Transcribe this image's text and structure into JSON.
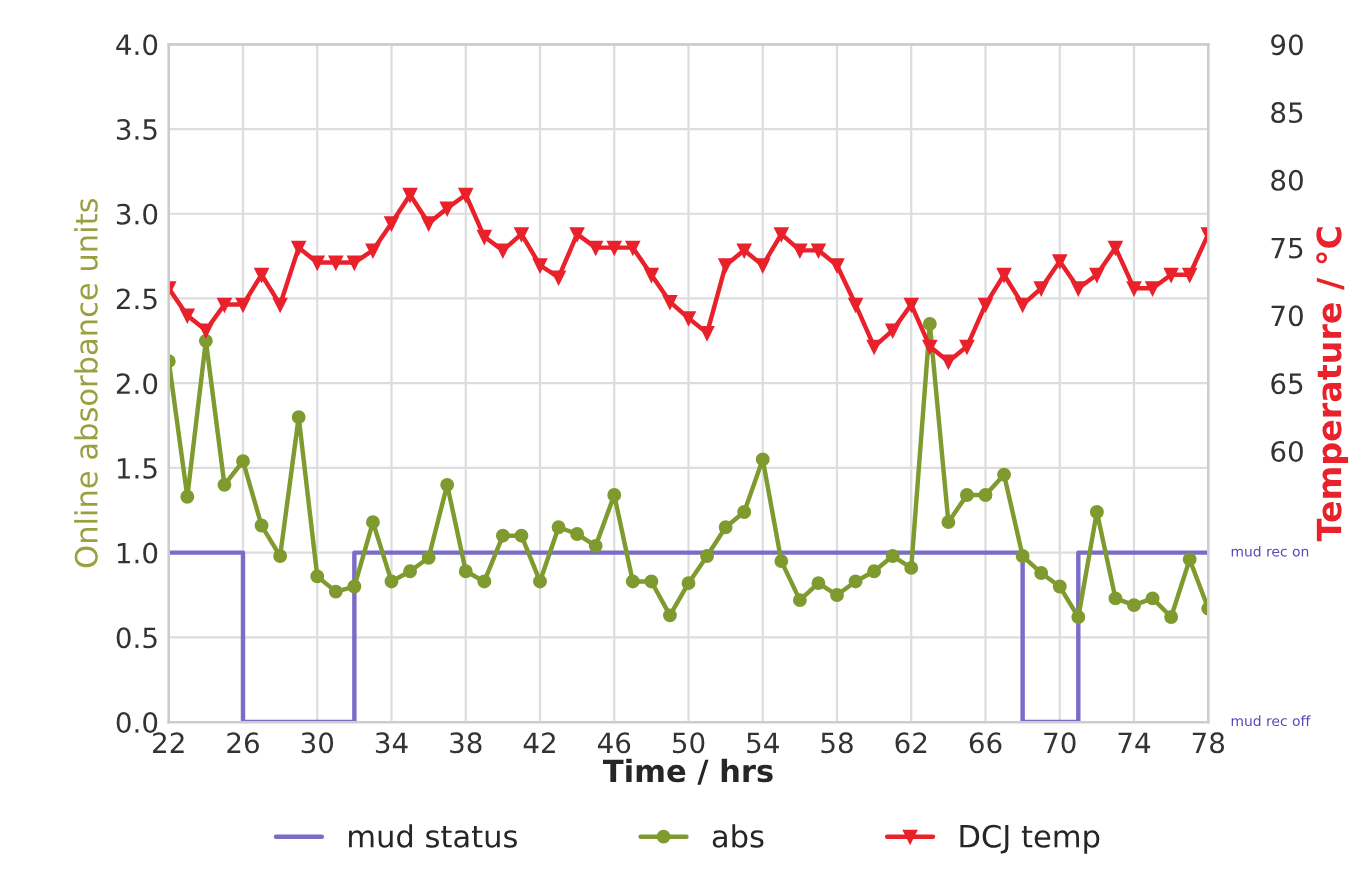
{
  "chart_data": {
    "type": "line",
    "xlabel": "Time / hrs",
    "ylabel": "Online absorbance units",
    "y2label": "Temperature / °C",
    "xlim": [
      22,
      78
    ],
    "xticks": [
      22,
      26,
      30,
      34,
      38,
      42,
      46,
      50,
      54,
      58,
      62,
      66,
      70,
      74,
      78
    ],
    "ylim": [
      0,
      4
    ],
    "yticks": [
      {
        "value": 0,
        "label": "0.0"
      },
      {
        "value": 0.5,
        "label": "0.5"
      },
      {
        "value": 1,
        "label": "1.0"
      },
      {
        "value": 1.5,
        "label": "1.5"
      },
      {
        "value": 2,
        "label": "2.0"
      },
      {
        "value": 2.5,
        "label": "2.5"
      },
      {
        "value": 3,
        "label": "3.0"
      },
      {
        "value": 3.5,
        "label": "3.5"
      },
      {
        "value": 4,
        "label": "4.0"
      }
    ],
    "y2lim": [
      40,
      90
    ],
    "y2ticks": [
      60,
      65,
      70,
      75,
      80,
      85,
      90
    ],
    "grid": true,
    "legend": "bottom",
    "annotations": [
      "mud rec on",
      "mud rec off"
    ],
    "series": [
      {
        "name": "mud status",
        "color": "#7a6cc8",
        "marker": "none",
        "x": [
          22,
          26,
          26,
          32,
          32,
          68,
          68,
          71,
          71,
          78
        ],
        "values": [
          1,
          1,
          0,
          0,
          1,
          1,
          0,
          0,
          1,
          1
        ]
      },
      {
        "name": "abs",
        "color": "#7f9a2e",
        "marker": "circle",
        "x": [
          22,
          23,
          24,
          25,
          26,
          27,
          28,
          29,
          30,
          31,
          32,
          33,
          34,
          35,
          36,
          37,
          38,
          39,
          40,
          41,
          42,
          43,
          44,
          45,
          46,
          47,
          48,
          49,
          50,
          51,
          52,
          53,
          54,
          55,
          56,
          57,
          58,
          59,
          60,
          61,
          62,
          63,
          64,
          65,
          66,
          67,
          68,
          69,
          70,
          71,
          72,
          73,
          74,
          75,
          76,
          77,
          78
        ],
        "values": [
          2.13,
          1.33,
          2.25,
          1.4,
          1.54,
          1.16,
          0.98,
          1.8,
          0.86,
          0.77,
          0.8,
          1.18,
          0.83,
          0.89,
          0.97,
          1.4,
          0.89,
          0.83,
          1.1,
          1.1,
          0.83,
          1.15,
          1.11,
          1.04,
          1.34,
          0.83,
          0.83,
          0.63,
          0.82,
          0.98,
          1.15,
          1.24,
          1.55,
          0.95,
          0.72,
          0.82,
          0.75,
          0.83,
          0.89,
          0.98,
          0.91,
          2.35,
          1.18,
          1.34,
          1.34,
          1.46,
          0.98,
          0.88,
          0.8,
          0.62,
          1.24,
          0.73,
          0.69,
          0.73,
          0.62,
          0.96,
          0.67
        ]
      },
      {
        "name": "DCJ temp",
        "axis": "y2",
        "color": "#e8212b",
        "marker": "triangle",
        "x": [
          22,
          23,
          24,
          25,
          26,
          27,
          28,
          29,
          30,
          31,
          32,
          33,
          34,
          35,
          36,
          37,
          38,
          39,
          40,
          41,
          42,
          43,
          44,
          45,
          46,
          47,
          48,
          49,
          50,
          51,
          52,
          53,
          54,
          55,
          56,
          57,
          58,
          59,
          60,
          61,
          62,
          63,
          64,
          65,
          66,
          67,
          68,
          69,
          70,
          71,
          72,
          73,
          74,
          75,
          76,
          77,
          78
        ],
        "values": [
          72,
          70,
          68.9,
          70.8,
          70.8,
          73,
          70.8,
          75,
          73.9,
          73.9,
          73.9,
          74.8,
          76.8,
          78.9,
          76.8,
          77.9,
          78.9,
          75.8,
          74.8,
          76,
          73.7,
          72.8,
          76,
          75,
          75,
          75,
          73,
          71,
          69.8,
          68.7,
          73.7,
          74.8,
          73.7,
          76,
          74.8,
          74.8,
          73.7,
          70.8,
          67.7,
          68.9,
          70.8,
          67.7,
          66.6,
          67.7,
          70.8,
          73,
          70.8,
          72,
          74,
          72,
          73,
          75,
          72,
          72,
          73,
          73,
          76
        ]
      }
    ]
  }
}
